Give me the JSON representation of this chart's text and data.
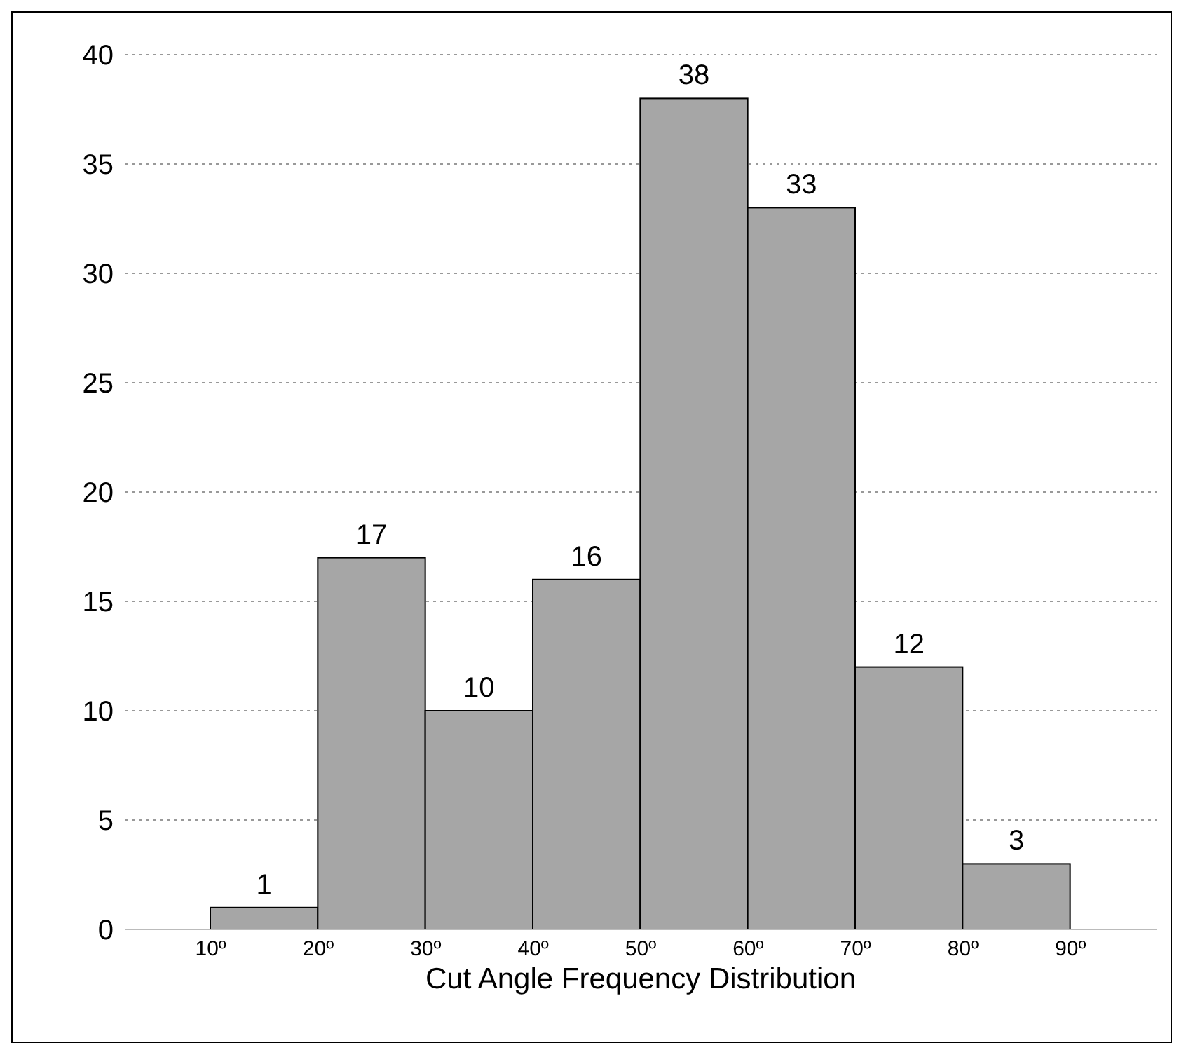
{
  "chart_data": {
    "type": "histogram",
    "xlabel": "Cut Angle Frequency Distribution",
    "bins": [
      10,
      20,
      30,
      40,
      50,
      60,
      70,
      80,
      90
    ],
    "values": [
      1,
      17,
      10,
      16,
      38,
      33,
      12,
      3
    ],
    "color": "#a6a6a6",
    "xlim": [
      2,
      98
    ],
    "xticks": [
      {
        "value": 10,
        "label": "10º"
      },
      {
        "value": 20,
        "label": "20º"
      },
      {
        "value": 30,
        "label": "30º"
      },
      {
        "value": 40,
        "label": "40º"
      },
      {
        "value": 50,
        "label": "50º"
      },
      {
        "value": 60,
        "label": "60º"
      },
      {
        "value": 70,
        "label": "70º"
      },
      {
        "value": 80,
        "label": "80º"
      },
      {
        "value": 90,
        "label": "90º"
      }
    ],
    "ylim": [
      0,
      40
    ],
    "yticks": [
      0,
      5,
      10,
      15,
      20,
      25,
      30,
      35,
      40
    ],
    "grid": "y",
    "data_labels": true
  }
}
